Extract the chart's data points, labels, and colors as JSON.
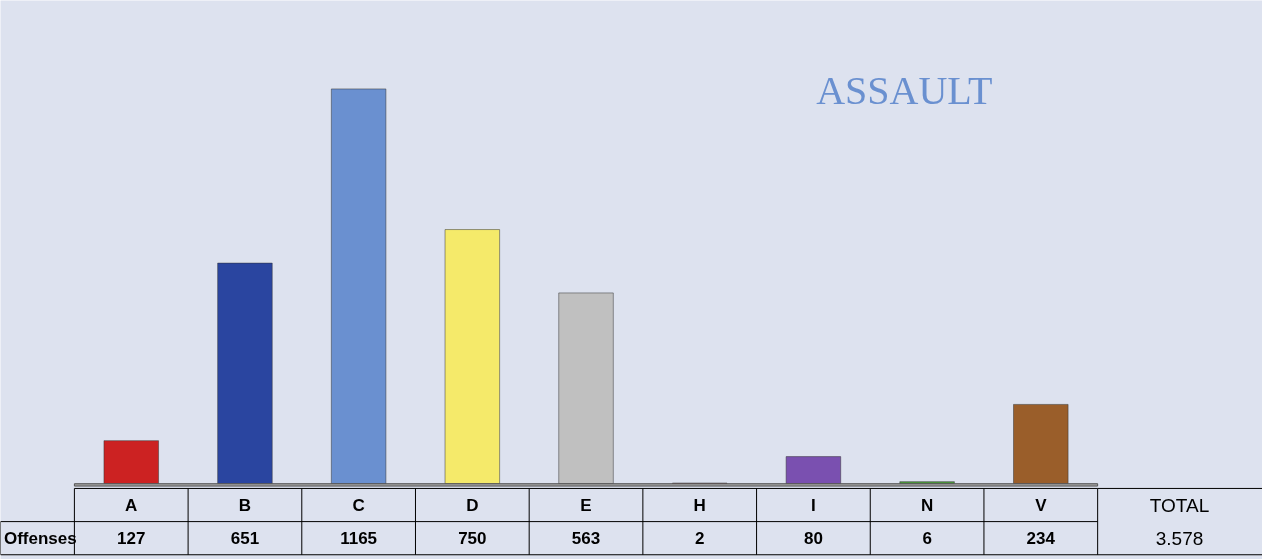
{
  "chart_data": {
    "type": "bar",
    "title": "ASSAULT",
    "categories": [
      "A",
      "B",
      "C",
      "D",
      "E",
      "H",
      "I",
      "N",
      "V"
    ],
    "series": [
      {
        "name": "Offenses",
        "values": [
          127,
          651,
          1165,
          750,
          563,
          2,
          80,
          6,
          234
        ],
        "colors": [
          "#cc2222",
          "#2a45a0",
          "#6a90d0",
          "#f5ea6a",
          "#c0c0c0",
          "#cc2222",
          "#7a50b0",
          "#4a9a3a",
          "#9a5e2a"
        ]
      }
    ],
    "data_labels": true,
    "annotations": [
      "TOTAL",
      "3.578"
    ]
  }
}
